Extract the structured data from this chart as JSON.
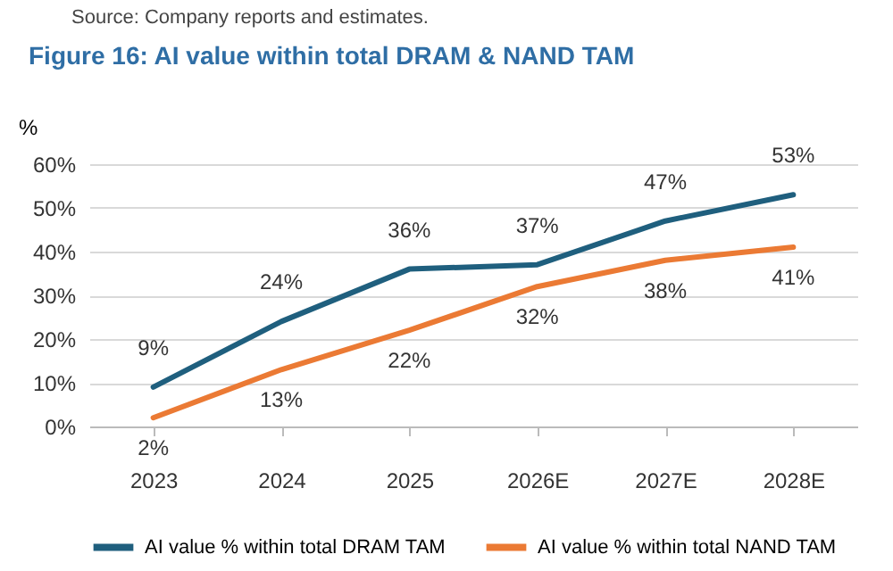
{
  "chart_data": {
    "type": "line",
    "title": "Figure 16: AI value within total DRAM & NAND TAM",
    "ylabel": "%",
    "annotations": [
      "Source: Company reports and estimates."
    ],
    "categories": [
      "2023",
      "2024",
      "2025",
      "2026E",
      "2027E",
      "2028E"
    ],
    "series": [
      {
        "name": "AI value % within total DRAM TAM",
        "color": "#1f5f7e",
        "values": [
          9,
          24,
          36,
          37,
          47,
          53
        ],
        "value_labels": [
          "9%",
          "24%",
          "36%",
          "37%",
          "47%",
          "53%"
        ]
      },
      {
        "name": "AI value % within total NAND TAM",
        "color": "#eb7a34",
        "values": [
          2,
          13,
          22,
          32,
          38,
          41
        ],
        "value_labels": [
          "2%",
          "13%",
          "22%",
          "32%",
          "38%",
          "41%"
        ]
      }
    ],
    "ylim": [
      0,
      60
    ],
    "yticks": [
      {
        "value": 0,
        "label": "0%"
      },
      {
        "value": 10,
        "label": "10%"
      },
      {
        "value": 20,
        "label": "20%"
      },
      {
        "value": 30,
        "label": "30%"
      },
      {
        "value": 40,
        "label": "40%"
      },
      {
        "value": 50,
        "label": "50%"
      },
      {
        "value": 60,
        "label": "60%"
      }
    ],
    "grid": "y",
    "legend": "bottom",
    "marker": "none",
    "line_style": "solid"
  }
}
